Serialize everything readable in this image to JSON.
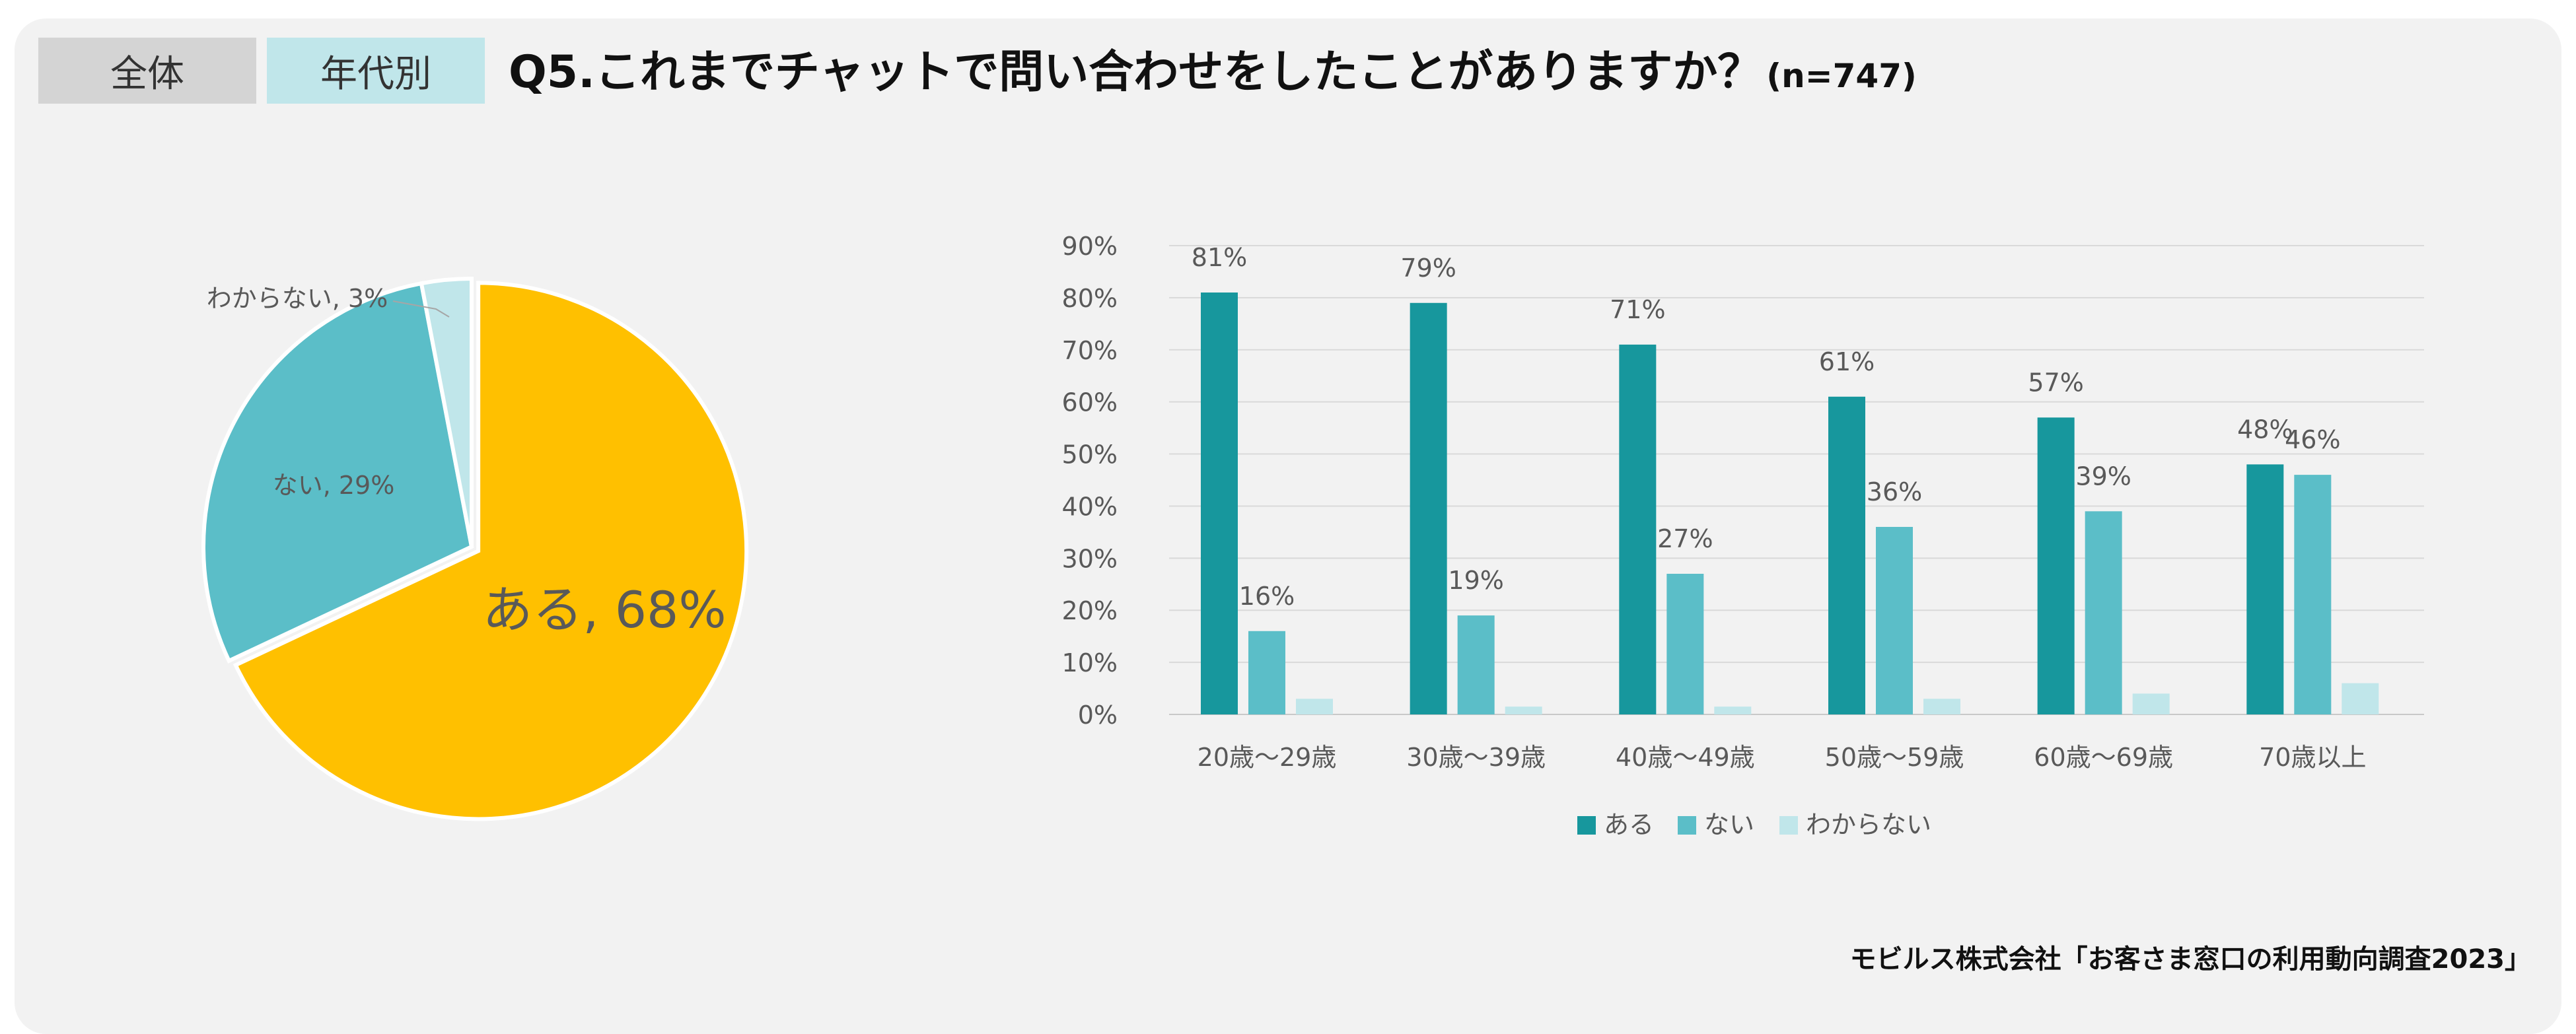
{
  "tabs": {
    "all_label": "全体",
    "age_label": "年代別"
  },
  "title": {
    "question": "Q5.これまでチャットで問い合わせをしたことがありますか？",
    "sample": "(n=747)"
  },
  "source": "モビルス株式会社「お客さま窓口の利用動向調査2023」",
  "colors": {
    "pie_aru": "#FFC000",
    "pie_nai": "#5BBEC8",
    "pie_wakaranai": "#C0E6EA",
    "bar_aru": "#17979D",
    "bar_nai": "#5BBEC8",
    "bar_wakaranai": "#C0E6EA"
  },
  "chart_data": [
    {
      "type": "pie",
      "slices": [
        {
          "label": "ある",
          "value": 68,
          "display": "ある, 68%"
        },
        {
          "label": "ない",
          "value": 29,
          "display": "ない, 29%"
        },
        {
          "label": "わからない",
          "value": 3,
          "display": "わからない, 3%"
        }
      ]
    },
    {
      "type": "bar",
      "categories": [
        "20歳～29歳",
        "30歳～39歳",
        "40歳～49歳",
        "50歳～59歳",
        "60歳～69歳",
        "70歳以上"
      ],
      "series": [
        {
          "name": "ある",
          "values": [
            81,
            79,
            71,
            61,
            57,
            48
          ],
          "labels": [
            "81%",
            "79%",
            "71%",
            "61%",
            "57%",
            "48%"
          ]
        },
        {
          "name": "ない",
          "values": [
            16,
            19,
            27,
            36,
            39,
            46
          ],
          "labels": [
            "16%",
            "19%",
            "27%",
            "36%",
            "39%",
            "46%"
          ]
        },
        {
          "name": "わからない",
          "values": [
            3,
            1.5,
            1.5,
            3,
            4,
            6
          ]
        }
      ],
      "ylim": [
        0,
        90
      ],
      "yticks": [
        "0%",
        "10%",
        "20%",
        "30%",
        "40%",
        "50%",
        "60%",
        "70%",
        "80%",
        "90%"
      ],
      "grid": true,
      "legend": "bottom"
    }
  ]
}
